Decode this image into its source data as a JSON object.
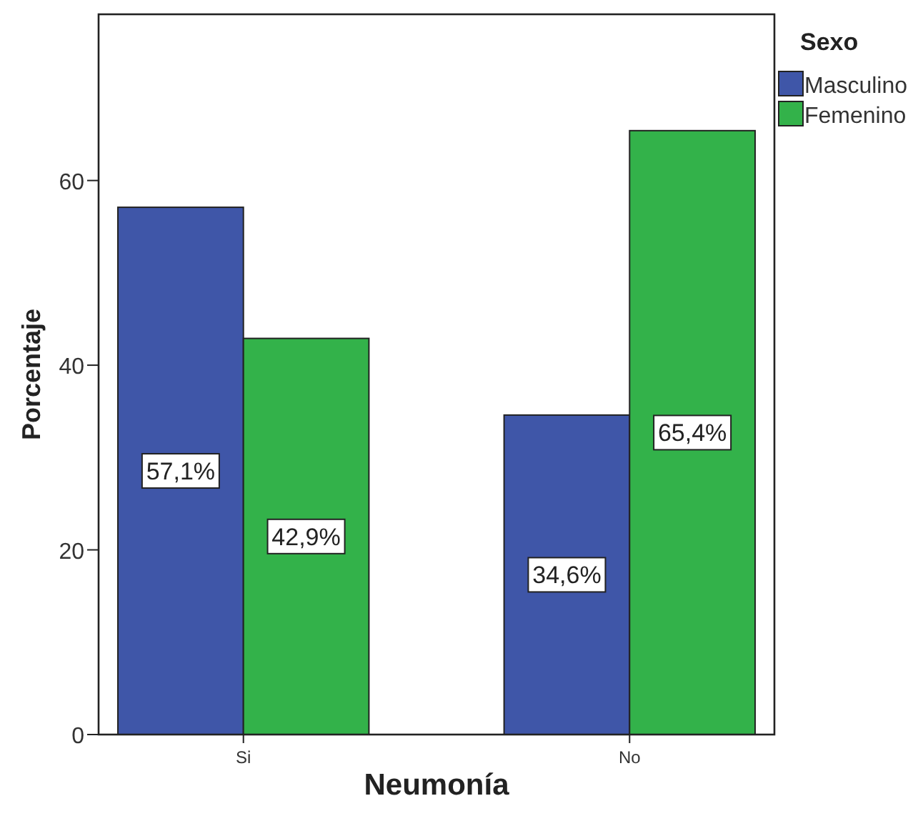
{
  "chart_data": {
    "type": "bar",
    "xlabel": "Neumonía",
    "ylabel": "Porcentaje",
    "legend_title": "Sexo",
    "categories": [
      "Si",
      "No"
    ],
    "series": [
      {
        "name": "Masculino",
        "color": "#3f56a8",
        "values": [
          57.1,
          34.6
        ],
        "value_labels": [
          "57,1%",
          "34,6%"
        ]
      },
      {
        "name": "Femenino",
        "color": "#33b24a",
        "values": [
          42.9,
          65.4
        ],
        "value_labels": [
          "42,9%",
          "65,4%"
        ]
      }
    ],
    "ylim": [
      0,
      78
    ],
    "yticks": [
      0,
      20,
      40,
      60
    ],
    "grid": false,
    "legend": "right"
  }
}
